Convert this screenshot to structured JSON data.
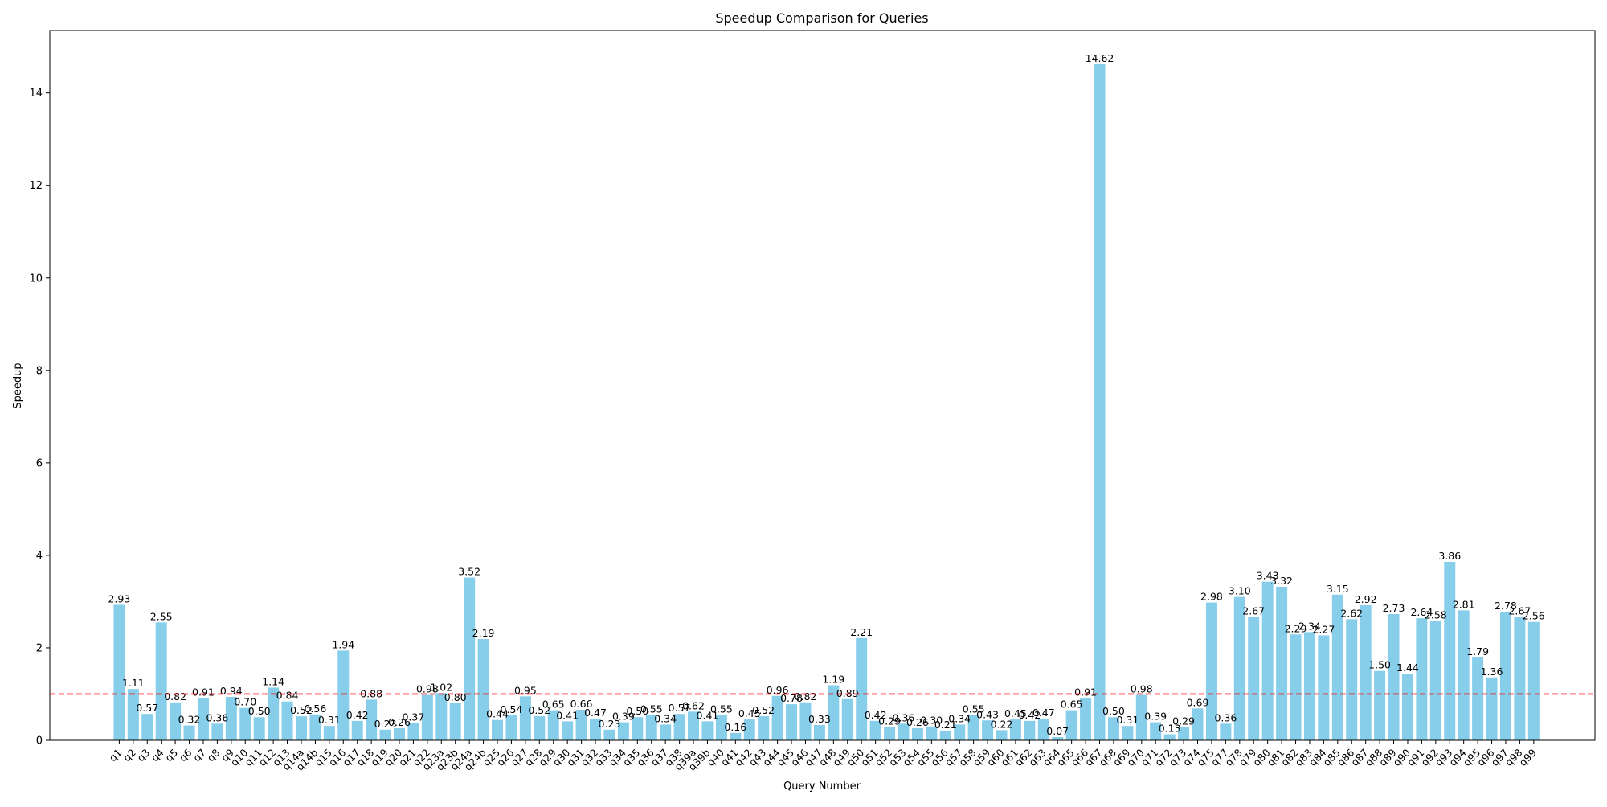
{
  "chart_data": {
    "type": "bar",
    "title": "Speedup Comparison for Queries",
    "xlabel": "Query Number",
    "ylabel": "Speedup",
    "ylim": [
      0,
      15.35
    ],
    "yticks": [
      0,
      2,
      4,
      6,
      8,
      10,
      12,
      14
    ],
    "grid": false,
    "bar_color": "#87CEEB",
    "reference_line": {
      "y": 1.0,
      "color": "#ff0000",
      "style": "dashed"
    },
    "categories": [
      "q1",
      "q2",
      "q3",
      "q4",
      "q5",
      "q6",
      "q7",
      "q8",
      "q9",
      "q10",
      "q11",
      "q12",
      "q13",
      "q14a",
      "q14b",
      "q15",
      "q16",
      "q17",
      "q18",
      "q19",
      "q20",
      "q21",
      "q22",
      "q23a",
      "q23b",
      "q24a",
      "q24b",
      "q25",
      "q26",
      "q27",
      "q28",
      "q29",
      "q30",
      "q31",
      "q32",
      "q33",
      "q34",
      "q35",
      "q36",
      "q37",
      "q38",
      "q39a",
      "q39b",
      "q40",
      "q41",
      "q42",
      "q43",
      "q44",
      "q45",
      "q46",
      "q47",
      "q48",
      "q49",
      "q50",
      "q51",
      "q52",
      "q53",
      "q54",
      "q55",
      "q56",
      "q57",
      "q58",
      "q59",
      "q60",
      "q61",
      "q62",
      "q63",
      "q64",
      "q65",
      "q66",
      "q67",
      "q68",
      "q69",
      "q70",
      "q71",
      "q72",
      "q73",
      "q74",
      "q75",
      "q77",
      "q78",
      "q79",
      "q80",
      "q81",
      "q82",
      "q83",
      "q84",
      "q85",
      "q86",
      "q87",
      "q88",
      "q89",
      "q90",
      "q91",
      "q92",
      "q93",
      "q94",
      "q95",
      "q96",
      "q97",
      "q98",
      "q99"
    ],
    "values": [
      2.93,
      1.11,
      0.57,
      2.55,
      0.82,
      0.32,
      0.91,
      0.36,
      0.94,
      0.7,
      0.5,
      1.14,
      0.84,
      0.52,
      0.56,
      0.31,
      1.94,
      0.42,
      0.88,
      0.23,
      0.26,
      0.37,
      0.98,
      1.02,
      0.8,
      3.52,
      2.19,
      0.44,
      0.54,
      0.95,
      0.52,
      0.65,
      0.41,
      0.66,
      0.47,
      0.23,
      0.39,
      0.5,
      0.55,
      0.34,
      0.57,
      0.62,
      0.41,
      0.55,
      0.16,
      0.45,
      0.52,
      0.96,
      0.78,
      0.82,
      0.33,
      1.19,
      0.89,
      2.21,
      0.42,
      0.29,
      0.36,
      0.26,
      0.3,
      0.21,
      0.34,
      0.55,
      0.43,
      0.22,
      0.45,
      0.42,
      0.47,
      0.07,
      0.65,
      0.91,
      14.62,
      0.5,
      0.31,
      0.98,
      0.39,
      0.13,
      0.29,
      0.69,
      2.98,
      0.36,
      3.1,
      2.67,
      3.43,
      3.32,
      2.29,
      2.34,
      2.27,
      3.15,
      2.62,
      2.92,
      1.5,
      2.73,
      1.44,
      2.64,
      2.58,
      3.86,
      2.81,
      1.79,
      1.36,
      2.78,
      2.67,
      2.56
    ],
    "value_labels": [
      "2.93",
      "1.11",
      "0.57",
      "2.55",
      "0.82",
      "0.32",
      "0.91",
      "0.36",
      "0.94",
      "0.70",
      "0.50",
      "1.14",
      "0.84",
      "0.52",
      "0.56",
      "0.31",
      "1.94",
      "0.42",
      "0.88",
      "0.23",
      "0.26",
      "0.37",
      "0.98",
      "1.02",
      "0.80",
      "3.52",
      "2.19",
      "0.44",
      "0.54",
      "0.95",
      "0.52",
      "0.65",
      "0.41",
      "0.66",
      "0.47",
      "0.23",
      "0.39",
      "0.50",
      "0.55",
      "0.34",
      "0.57",
      "0.62",
      "0.41",
      "0.55",
      "0.16",
      "0.45",
      "0.52",
      "0.96",
      "0.78",
      "0.82",
      "0.33",
      "1.19",
      "0.89",
      "2.21",
      "0.42",
      "0.29",
      "0.36",
      "0.26",
      "0.30",
      "0.21",
      "0.34",
      "0.55",
      "0.43",
      "0.22",
      "0.45",
      "0.42",
      "0.47",
      "0.07",
      "0.65",
      "0.91",
      "14.62",
      "0.50",
      "0.31",
      "0.98",
      "0.39",
      "0.13",
      "0.29",
      "0.69",
      "2.98",
      "0.36",
      "3.10",
      "2.67",
      "3.43",
      "3.32",
      "2.29",
      "2.34",
      "2.27",
      "3.15",
      "2.62",
      "2.92",
      "1.50",
      "2.73",
      "1.44",
      "2.64",
      "2.58",
      "3.86",
      "2.81",
      "1.79",
      "1.36",
      "2.78",
      "2.67",
      "2.56"
    ]
  }
}
